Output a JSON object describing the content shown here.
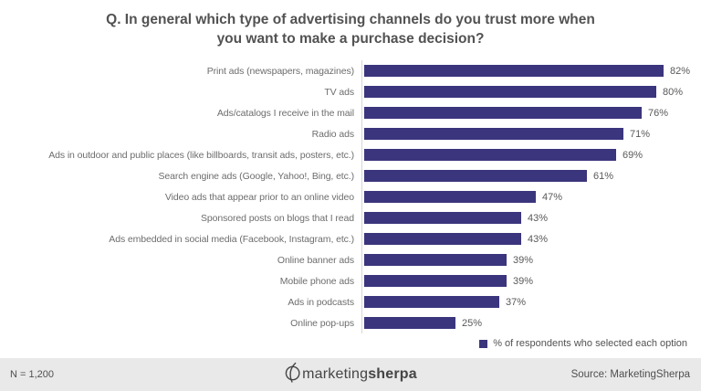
{
  "page": {
    "title_line1": "Q. In general which type of advertising channels do you trust more when",
    "title_line2": "you want to make a purchase decision?"
  },
  "chart_data": {
    "type": "bar",
    "orientation": "horizontal",
    "title": "Q. In general which type of advertising channels do you trust more when you want to make a purchase decision?",
    "categories": [
      "Print ads (newspapers, magazines)",
      "TV ads",
      "Ads/catalogs I receive in the mail",
      "Radio ads",
      "Ads in outdoor and public places (like billboards, transit ads, posters, etc.)",
      "Search engine ads (Google, Yahoo!, Bing, etc.)",
      "Video ads that appear prior to an online video",
      "Sponsored posts on blogs that I read",
      "Ads embedded in social media (Facebook, Instagram, etc.)",
      "Online banner ads",
      "Mobile phone ads",
      "Ads in podcasts",
      "Online pop-ups"
    ],
    "values": [
      82,
      80,
      76,
      71,
      69,
      61,
      47,
      43,
      43,
      39,
      39,
      37,
      25
    ],
    "value_suffix": "%",
    "xlim": [
      0,
      100
    ],
    "grid": false,
    "legend": {
      "label": "% of respondents who selected each option",
      "position": "bottom-right"
    },
    "bar_color": "#3b357d"
  },
  "footer": {
    "sample_size": "N = 1,200",
    "logo_text_light": "marketing",
    "logo_text_bold": "sherpa",
    "source": "Source: MarketingSherpa"
  },
  "colors": {
    "bar": "#3b357d",
    "title_text": "#525252",
    "label_text": "#6d6d6d",
    "value_text": "#595959",
    "footer_bg": "#e9e9e9",
    "axis_line": "#d6d6d6"
  }
}
